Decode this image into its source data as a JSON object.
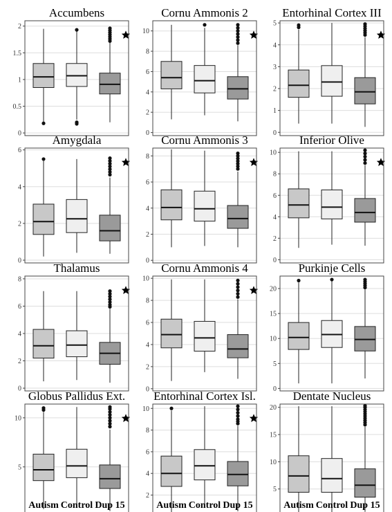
{
  "xlabels": [
    "Autism",
    "Control",
    "Dup 15"
  ],
  "colors": {
    "autism": "#c8c8c8",
    "control": "#efefef",
    "dup15": "#9a9a9a",
    "grid": "#dddddd",
    "frame": "#444444",
    "outlier": "#111111",
    "star": "#000000"
  },
  "chart_data": [
    {
      "type": "box",
      "title": "Accumbens",
      "ylim": [
        -0.05,
        2.1
      ],
      "yticks": [
        0,
        0.5,
        1,
        1.5,
        2
      ],
      "ytick_labels": [
        "0",
        "0.5",
        "1",
        "1.5",
        "2"
      ],
      "categories": [
        "Autism",
        "Control",
        "Dup 15"
      ],
      "boxes": [
        {
          "min": 0.2,
          "q1": 0.85,
          "median": 1.05,
          "q3": 1.3,
          "max": 1.95,
          "outliers": [
            0.18
          ]
        },
        {
          "min": 0.25,
          "q1": 0.87,
          "median": 1.07,
          "q3": 1.3,
          "max": 1.92,
          "outliers": [
            0.2,
            0.17,
            1.93
          ]
        },
        {
          "min": 0.2,
          "q1": 0.73,
          "median": 0.91,
          "q3": 1.12,
          "max": 1.7,
          "outliers": [
            1.72,
            1.76,
            1.8,
            1.84,
            1.88,
            1.92,
            1.96
          ]
        }
      ],
      "significant": [
        false,
        false,
        true
      ]
    },
    {
      "type": "box",
      "title": "Cornu Ammonis 2",
      "ylim": [
        -0.3,
        11
      ],
      "yticks": [
        0,
        2,
        4,
        6,
        8,
        10
      ],
      "ytick_labels": [
        "0",
        "2",
        "4",
        "6",
        "8",
        "10"
      ],
      "categories": [
        "Autism",
        "Control",
        "Dup 15"
      ],
      "boxes": [
        {
          "min": 1.3,
          "q1": 4.3,
          "median": 5.4,
          "q3": 7.0,
          "max": 10.6,
          "outliers": []
        },
        {
          "min": 1.7,
          "q1": 3.9,
          "median": 5.1,
          "q3": 6.6,
          "max": 10.3,
          "outliers": [
            10.6
          ]
        },
        {
          "min": 1.1,
          "q1": 3.3,
          "median": 4.3,
          "q3": 5.5,
          "max": 8.6,
          "outliers": [
            8.8,
            9.1,
            9.4,
            9.7,
            10.0,
            10.3,
            10.6
          ]
        }
      ],
      "significant": [
        false,
        false,
        true
      ]
    },
    {
      "type": "box",
      "title": "Entorhinal Cortex III",
      "ylim": [
        -0.15,
        5.1
      ],
      "yticks": [
        0,
        1,
        2,
        3,
        4,
        5
      ],
      "ytick_labels": [
        "0",
        "1",
        "2",
        "3",
        "4",
        "5"
      ],
      "categories": [
        "Autism",
        "Control",
        "Dup 15"
      ],
      "boxes": [
        {
          "min": 0.4,
          "q1": 1.6,
          "median": 2.15,
          "q3": 2.85,
          "max": 4.7,
          "outliers": [
            4.8,
            4.9
          ]
        },
        {
          "min": 0.4,
          "q1": 1.65,
          "median": 2.3,
          "q3": 3.05,
          "max": 5.0,
          "outliers": []
        },
        {
          "min": 0.25,
          "q1": 1.3,
          "median": 1.85,
          "q3": 2.5,
          "max": 4.35,
          "outliers": [
            4.45,
            4.55,
            4.65,
            4.75,
            4.85,
            4.95
          ]
        }
      ],
      "significant": [
        false,
        false,
        true
      ]
    },
    {
      "type": "box",
      "title": "Amygdala",
      "ylim": [
        -0.15,
        6.1
      ],
      "yticks": [
        0,
        2,
        4,
        6
      ],
      "ytick_labels": [
        "0",
        "2",
        "4",
        "6"
      ],
      "categories": [
        "Autism",
        "Control",
        "Dup 15"
      ],
      "boxes": [
        {
          "min": 0.2,
          "q1": 1.4,
          "median": 2.1,
          "q3": 3.05,
          "max": 5.4,
          "outliers": [
            5.5
          ]
        },
        {
          "min": 0.4,
          "q1": 1.5,
          "median": 2.25,
          "q3": 3.3,
          "max": 5.5,
          "outliers": []
        },
        {
          "min": 0.35,
          "q1": 1.05,
          "median": 1.6,
          "q3": 2.45,
          "max": 4.5,
          "outliers": [
            4.65,
            4.8,
            4.95,
            5.1,
            5.25,
            5.4,
            5.55
          ]
        }
      ],
      "significant": [
        false,
        false,
        true
      ]
    },
    {
      "type": "box",
      "title": "Cornu Ammonis 3",
      "ylim": [
        -0.2,
        8.6
      ],
      "yticks": [
        0,
        2,
        4,
        6,
        8
      ],
      "ytick_labels": [
        "0",
        "2",
        "4",
        "6",
        "8"
      ],
      "categories": [
        "Autism",
        "Control",
        "Dup 15"
      ],
      "boxes": [
        {
          "min": 1.0,
          "q1": 3.1,
          "median": 4.05,
          "q3": 5.4,
          "max": 8.5,
          "outliers": []
        },
        {
          "min": 1.1,
          "q1": 3.0,
          "median": 3.95,
          "q3": 5.3,
          "max": 8.4,
          "outliers": []
        },
        {
          "min": 1.0,
          "q1": 2.45,
          "median": 3.2,
          "q3": 4.2,
          "max": 6.8,
          "outliers": [
            7.0,
            7.2,
            7.4,
            7.6,
            7.8,
            8.0,
            8.2
          ]
        }
      ],
      "significant": [
        false,
        false,
        true
      ]
    },
    {
      "type": "box",
      "title": "Inferior Olive",
      "ylim": [
        -0.3,
        10.4
      ],
      "yticks": [
        0,
        2,
        4,
        6,
        8,
        10
      ],
      "ytick_labels": [
        "0",
        "2",
        "4",
        "6",
        "8",
        "10"
      ],
      "categories": [
        "Autism",
        "Control",
        "Dup 15"
      ],
      "boxes": [
        {
          "min": 1.1,
          "q1": 3.9,
          "median": 5.1,
          "q3": 6.6,
          "max": 10.1,
          "outliers": []
        },
        {
          "min": 1.4,
          "q1": 3.8,
          "median": 4.9,
          "q3": 6.5,
          "max": 10.1,
          "outliers": []
        },
        {
          "min": 1.3,
          "q1": 3.5,
          "median": 4.4,
          "q3": 5.7,
          "max": 8.8,
          "outliers": [
            9.0,
            9.3,
            9.6,
            9.9,
            10.2
          ]
        }
      ],
      "significant": [
        false,
        false,
        true
      ]
    },
    {
      "type": "box",
      "title": "Thalamus",
      "ylim": [
        -0.2,
        8.2
      ],
      "yticks": [
        0,
        2,
        4,
        6,
        8
      ],
      "ytick_labels": [
        "0",
        "2",
        "4",
        "6",
        "8"
      ],
      "categories": [
        "Autism",
        "Control",
        "Dup 15"
      ],
      "boxes": [
        {
          "min": 0.5,
          "q1": 2.2,
          "median": 3.1,
          "q3": 4.3,
          "max": 7.1,
          "outliers": []
        },
        {
          "min": 0.6,
          "q1": 2.3,
          "median": 3.15,
          "q3": 4.2,
          "max": 7.1,
          "outliers": []
        },
        {
          "min": 0.4,
          "q1": 1.75,
          "median": 2.55,
          "q3": 3.35,
          "max": 5.8,
          "outliers": [
            5.95,
            6.1,
            6.3,
            6.5,
            6.7,
            6.9,
            7.1
          ]
        }
      ],
      "significant": [
        false,
        false,
        true
      ]
    },
    {
      "type": "box",
      "title": "Cornu Ammonis 4",
      "ylim": [
        -0.2,
        10.2
      ],
      "yticks": [
        0,
        2,
        4,
        6,
        8,
        10
      ],
      "ytick_labels": [
        "0",
        "2",
        "4",
        "6",
        "8",
        "10"
      ],
      "categories": [
        "Autism",
        "Control",
        "Dup 15"
      ],
      "boxes": [
        {
          "min": 0.7,
          "q1": 3.7,
          "median": 4.9,
          "q3": 6.3,
          "max": 9.9,
          "outliers": []
        },
        {
          "min": 1.5,
          "q1": 3.4,
          "median": 4.6,
          "q3": 6.1,
          "max": 9.9,
          "outliers": []
        },
        {
          "min": 0.9,
          "q1": 2.8,
          "median": 3.6,
          "q3": 4.9,
          "max": 8.1,
          "outliers": [
            8.3,
            8.6,
            8.9,
            9.2,
            9.5,
            9.8
          ]
        }
      ],
      "significant": [
        false,
        false,
        true
      ]
    },
    {
      "type": "box",
      "title": "Purkinje Cells",
      "ylim": [
        -0.5,
        22.5
      ],
      "yticks": [
        0,
        5,
        10,
        15,
        20
      ],
      "ytick_labels": [
        "0",
        "5",
        "10",
        "15",
        "20"
      ],
      "categories": [
        "Autism",
        "Control",
        "Dup 15"
      ],
      "boxes": [
        {
          "min": 1.0,
          "q1": 7.8,
          "median": 10.2,
          "q3": 13.2,
          "max": 21.2,
          "outliers": [
            21.6
          ]
        },
        {
          "min": 1.0,
          "q1": 8.2,
          "median": 10.8,
          "q3": 13.6,
          "max": 21.5,
          "outliers": [
            21.8
          ]
        },
        {
          "min": 2.0,
          "q1": 7.5,
          "median": 9.8,
          "q3": 12.4,
          "max": 19.8,
          "outliers": [
            20.2,
            20.6,
            21.0,
            21.4,
            21.8
          ]
        }
      ],
      "significant": [
        false,
        false,
        false
      ]
    },
    {
      "type": "box",
      "title": "Globus Pallidus Ext.",
      "ylim": [
        -0.3,
        11.4
      ],
      "yticks": [
        0,
        5,
        10
      ],
      "ytick_labels": [
        "0",
        "5",
        "10"
      ],
      "categories": [
        "Autism",
        "Control",
        "Dup 15"
      ],
      "boxes": [
        {
          "min": 0.7,
          "q1": 3.6,
          "median": 4.7,
          "q3": 6.3,
          "max": 10.6,
          "outliers": [
            10.8,
            11.0
          ]
        },
        {
          "min": 1.1,
          "q1": 3.9,
          "median": 5.1,
          "q3": 6.8,
          "max": 11.1,
          "outliers": []
        },
        {
          "min": 0.5,
          "q1": 2.8,
          "median": 3.8,
          "q3": 5.2,
          "max": 8.8,
          "outliers": [
            9.1,
            9.4,
            9.7,
            10.0,
            10.3,
            10.6,
            10.9,
            11.1
          ]
        }
      ],
      "significant": [
        false,
        false,
        true
      ]
    },
    {
      "type": "box",
      "title": "Entorhinal Cortex Isl.",
      "ylim": [
        -0.2,
        10.4
      ],
      "yticks": [
        0,
        2,
        4,
        6,
        8,
        10
      ],
      "ytick_labels": [
        "0",
        "2",
        "4",
        "6",
        "8",
        "10"
      ],
      "categories": [
        "Autism",
        "Control",
        "Dup 15"
      ],
      "boxes": [
        {
          "min": 0.4,
          "q1": 2.8,
          "median": 4.0,
          "q3": 5.6,
          "max": 9.8,
          "outliers": [
            10.0
          ]
        },
        {
          "min": 1.2,
          "q1": 3.4,
          "median": 4.7,
          "q3": 6.2,
          "max": 10.2,
          "outliers": []
        },
        {
          "min": 0.5,
          "q1": 2.85,
          "median": 3.9,
          "q3": 5.1,
          "max": 8.4,
          "outliers": [
            8.6,
            8.8,
            9.0,
            9.3,
            9.6,
            9.9,
            10.2
          ]
        }
      ],
      "significant": [
        false,
        false,
        true
      ]
    },
    {
      "type": "box",
      "title": "Dentate Nucleus",
      "ylim": [
        -0.5,
        20.6
      ],
      "yticks": [
        0,
        5,
        10,
        15,
        20
      ],
      "ytick_labels": [
        "0",
        "5",
        "10",
        "15",
        "20"
      ],
      "categories": [
        "Autism",
        "Control",
        "Dup 15"
      ],
      "boxes": [
        {
          "min": 0.5,
          "q1": 4.4,
          "median": 7.4,
          "q3": 11.1,
          "max": 20.2,
          "outliers": []
        },
        {
          "min": 0.5,
          "q1": 4.4,
          "median": 6.9,
          "q3": 10.6,
          "max": 20.2,
          "outliers": []
        },
        {
          "min": 0.8,
          "q1": 3.5,
          "median": 5.7,
          "q3": 8.7,
          "max": 16.4,
          "outliers": [
            16.8,
            17.2,
            17.6,
            18.0,
            18.4,
            18.8,
            19.2,
            19.6,
            20.0,
            20.3
          ]
        }
      ],
      "significant": [
        false,
        false,
        false
      ]
    }
  ]
}
